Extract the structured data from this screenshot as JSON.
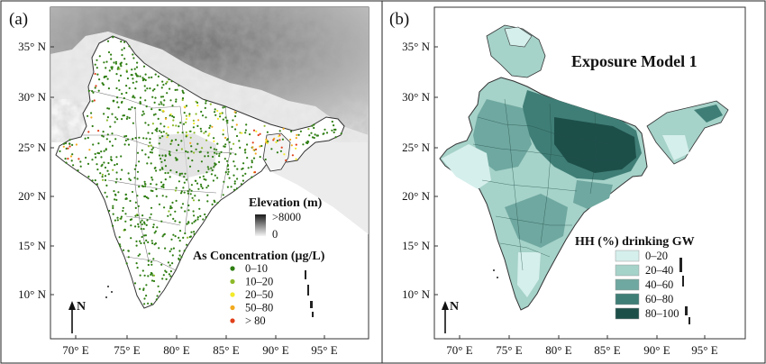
{
  "panels": [
    {
      "label": "(a)",
      "lat_ticks": [
        "35° N",
        "30° N",
        "25° N",
        "20° N",
        "15° N",
        "10° N"
      ],
      "lon_ticks": [
        "70° E",
        "75° E",
        "80° E",
        "85° E",
        "90° E",
        "95° E"
      ],
      "north_label": "N",
      "elevation_legend": {
        "title": "Elevation (m)",
        "max_label": ">8000",
        "min_label": "0"
      },
      "concentration_legend": {
        "title": "As Concentration (μg/L)",
        "items": [
          {
            "label": "0–10",
            "color": "#2e7d12"
          },
          {
            "label": "10–20",
            "color": "#8dba2a"
          },
          {
            "label": "20–50",
            "color": "#f2ea2a"
          },
          {
            "label": "50–80",
            "color": "#f2a91e"
          },
          {
            "label": "> 80",
            "color": "#e0401a"
          }
        ]
      }
    },
    {
      "label": "(b)",
      "title": "Exposure Model 1",
      "lat_ticks": [
        "35° N",
        "30° N",
        "25° N",
        "20° N",
        "15° N",
        "10° N"
      ],
      "lon_ticks": [
        "70° E",
        "75° E",
        "80° E",
        "85° E",
        "90° E",
        "95° E"
      ],
      "north_label": "N",
      "legend": {
        "title": "HH (%) drinking GW",
        "items": [
          {
            "label": "0–20",
            "color": "#d5efec"
          },
          {
            "label": "20–40",
            "color": "#a5d2c9"
          },
          {
            "label": "40–60",
            "color": "#6fa8a0"
          },
          {
            "label": "60–80",
            "color": "#3f7e76"
          },
          {
            "label": "80–100",
            "color": "#1d4f49"
          }
        ]
      }
    }
  ]
}
